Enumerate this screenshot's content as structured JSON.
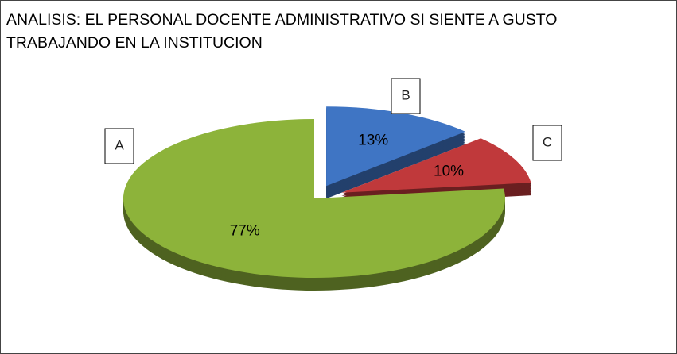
{
  "chart_data": {
    "type": "pie",
    "title": "ANALISIS: EL PERSONAL DOCENTE ADMINISTRATIVO SI SIENTE A GUSTO TRABAJANDO EN LA INSTITUCION",
    "categories": [
      "A",
      "B",
      "C"
    ],
    "values": [
      77,
      13,
      10
    ],
    "value_labels": [
      "77%",
      "13%",
      "10%"
    ],
    "colors": [
      "#8db33a",
      "#3f75c4",
      "#c0393b"
    ]
  }
}
